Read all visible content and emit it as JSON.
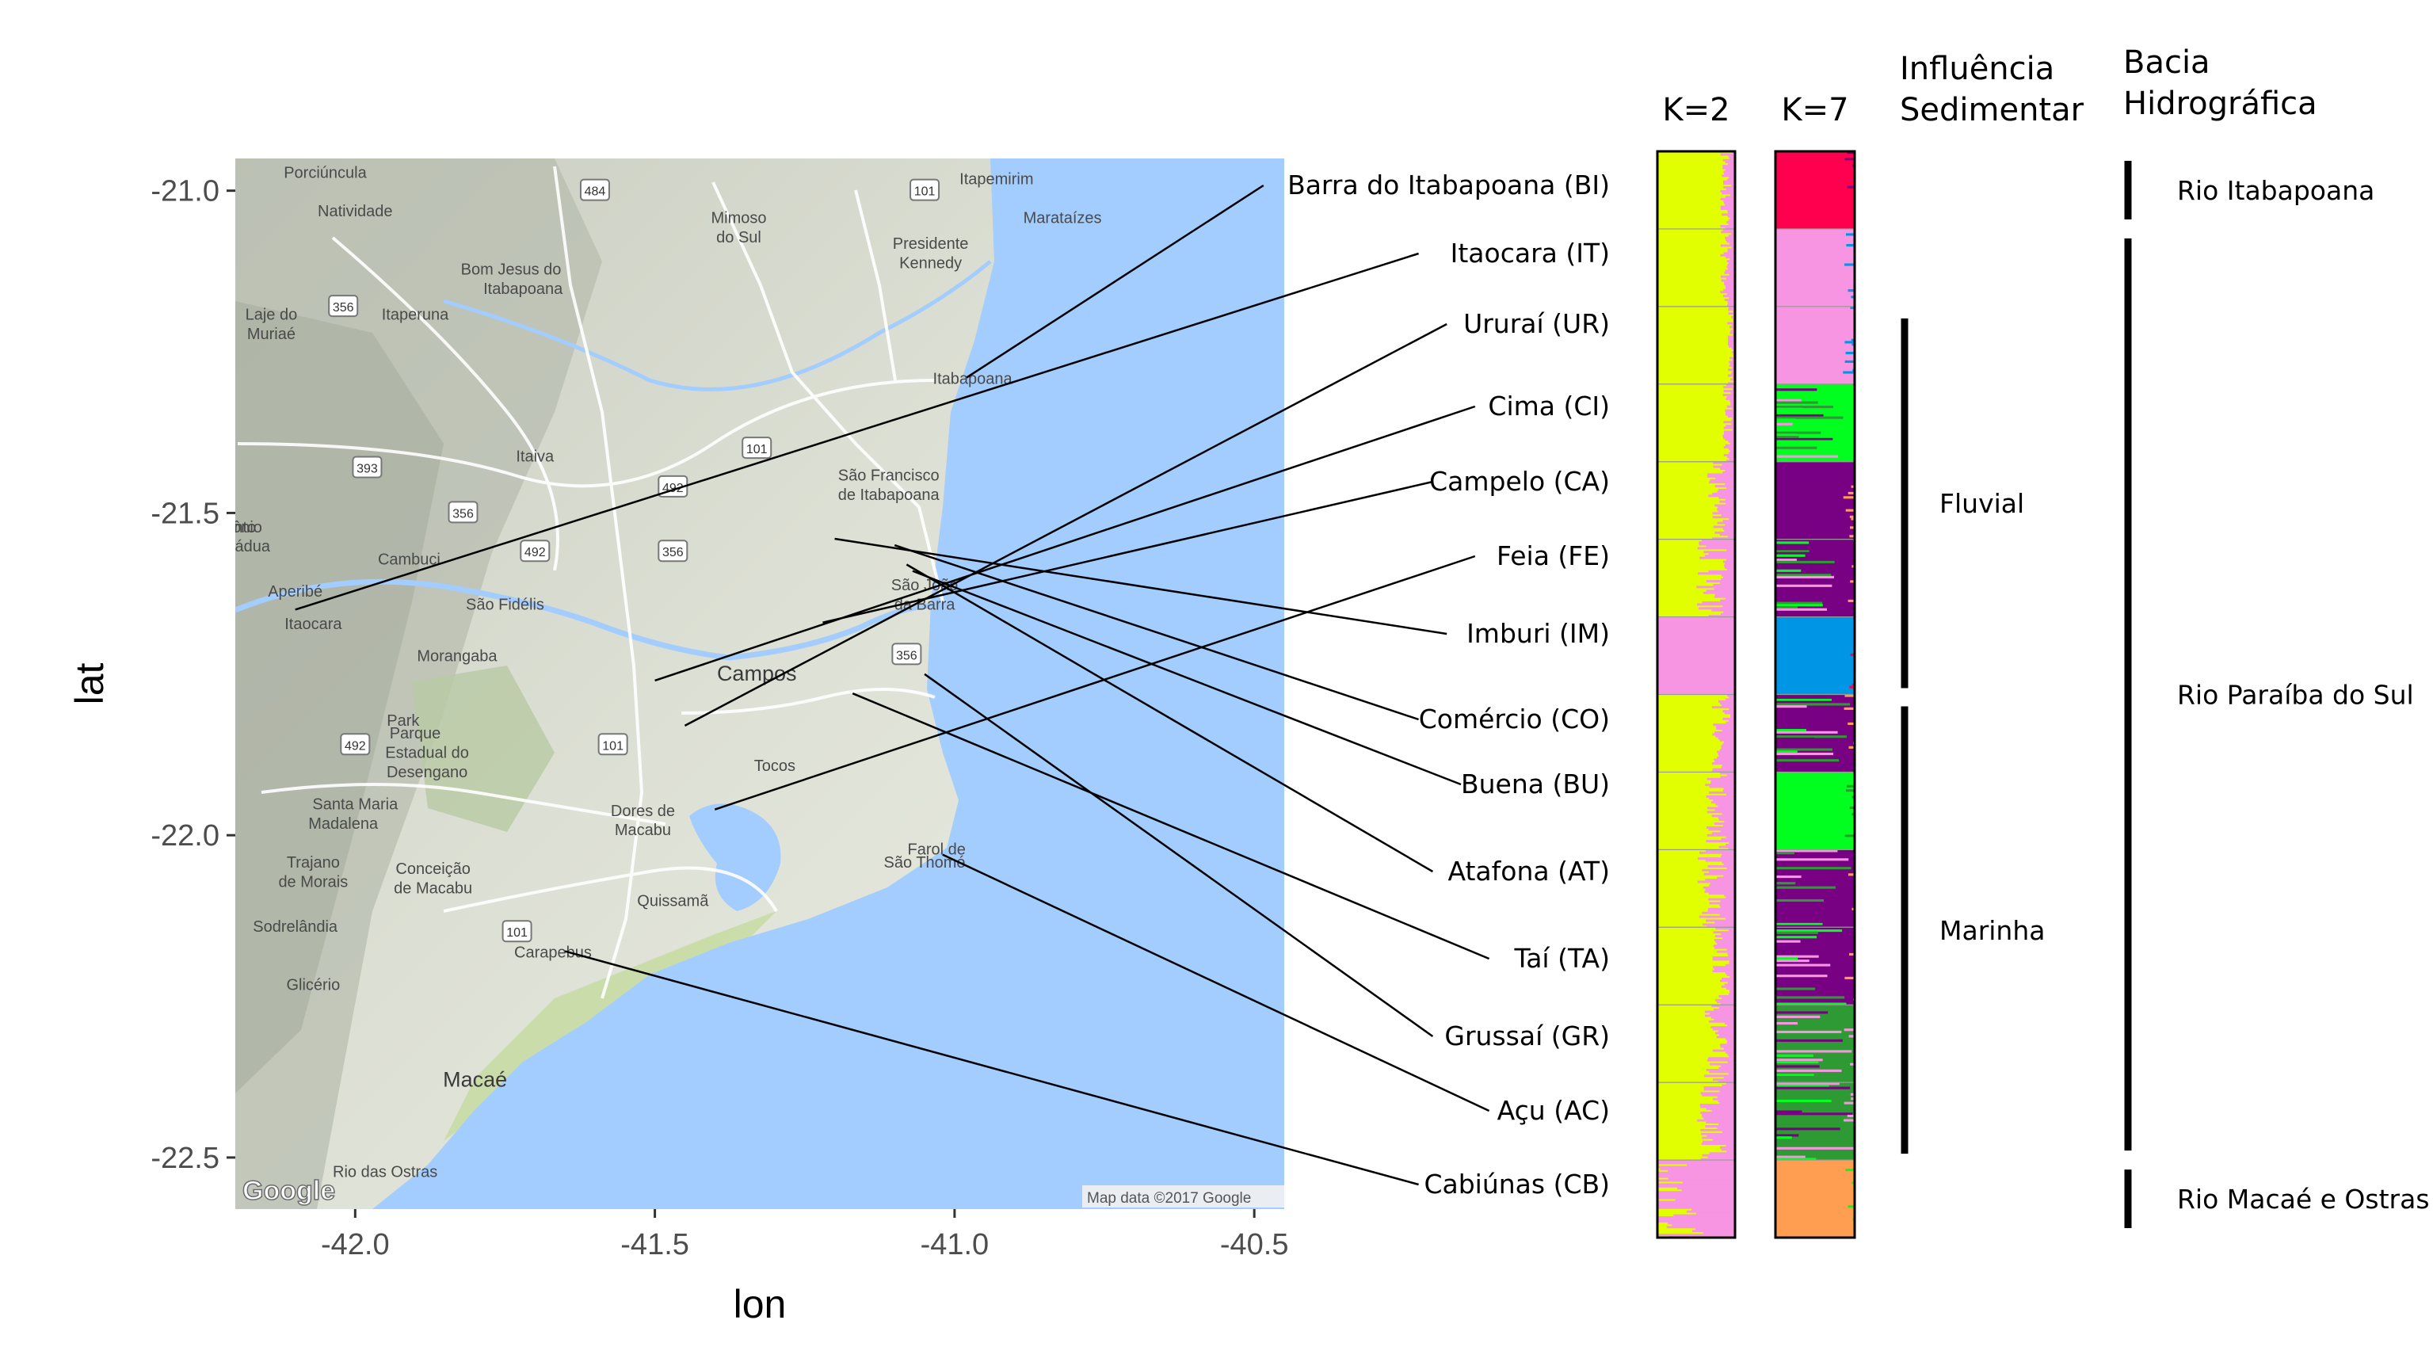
{
  "map": {
    "x_axis_title": "lon",
    "y_axis_title": "lat",
    "lon_range": [
      -42.2,
      -40.45
    ],
    "lat_range": [
      -22.58,
      -20.95
    ],
    "x_ticks": [
      {
        "value": -42.0,
        "label": "-42.0"
      },
      {
        "value": -41.5,
        "label": "-41.5"
      },
      {
        "value": -41.0,
        "label": "-41.0"
      },
      {
        "value": -40.5,
        "label": "-40.5"
      }
    ],
    "y_ticks": [
      {
        "value": -21.0,
        "label": "-21.0"
      },
      {
        "value": -21.5,
        "label": "-21.5"
      },
      {
        "value": -22.0,
        "label": "-22.0"
      },
      {
        "value": -22.5,
        "label": "-22.5"
      }
    ],
    "google_logo": "Google",
    "credit": "Map data ©2017 Google",
    "places": [
      {
        "name": "Porciúncula",
        "lon": -42.05,
        "lat": -20.98
      },
      {
        "name": "Natividade",
        "lon": -42.0,
        "lat": -21.04
      },
      {
        "name": "Bom Jesus do",
        "lon": -41.74,
        "lat": -21.13
      },
      {
        "name": "Itabapoana",
        "lon": -41.72,
        "lat": -21.16
      },
      {
        "name": "Laje do",
        "lon": -42.14,
        "lat": -21.2
      },
      {
        "name": "Muriaé",
        "lon": -42.14,
        "lat": -21.23
      },
      {
        "name": "Itaperuna",
        "lon": -41.9,
        "lat": -21.2
      },
      {
        "name": "Mimoso",
        "lon": -41.36,
        "lat": -21.05
      },
      {
        "name": "do Sul",
        "lon": -41.36,
        "lat": -21.08
      },
      {
        "name": "Itapemirim",
        "lon": -40.93,
        "lat": -20.99
      },
      {
        "name": "Marataízes",
        "lon": -40.82,
        "lat": -21.05
      },
      {
        "name": "Presidente",
        "lon": -41.04,
        "lat": -21.09
      },
      {
        "name": "Kennedy",
        "lon": -41.04,
        "lat": -21.12
      },
      {
        "name": "Itabapoana",
        "lon": -40.97,
        "lat": -21.3
      },
      {
        "name": "Itaocara",
        "lon": -42.07,
        "lat": -21.68
      },
      {
        "name": "Aperibé",
        "lon": -42.1,
        "lat": -21.63
      },
      {
        "name": "Itaiva",
        "lon": -41.7,
        "lat": -21.42
      },
      {
        "name": "Santo",
        "lon": -42.2,
        "lat": -21.53
      },
      {
        "name": "Antônio",
        "lon": -42.2,
        "lat": -21.53
      },
      {
        "name": "Pádua",
        "lon": -42.18,
        "lat": -21.56
      },
      {
        "name": "Cambuci",
        "lon": -41.91,
        "lat": -21.58
      },
      {
        "name": "São Fidélis",
        "lon": -41.75,
        "lat": -21.65
      },
      {
        "name": "São Francisco",
        "lon": -41.11,
        "lat": -21.45
      },
      {
        "name": "de Itabapoana",
        "lon": -41.11,
        "lat": -21.48
      },
      {
        "name": "São João",
        "lon": -41.05,
        "lat": -21.62
      },
      {
        "name": "da Barra",
        "lon": -41.05,
        "lat": -21.65
      },
      {
        "name": "Morangaba",
        "lon": -41.83,
        "lat": -21.73
      },
      {
        "name": "Campos",
        "lon": -41.33,
        "lat": -21.76
      },
      {
        "name": "Tocos",
        "lon": -41.3,
        "lat": -21.9
      },
      {
        "name": "Santa Maria",
        "lon": -42.0,
        "lat": -21.96
      },
      {
        "name": "Madalena",
        "lon": -42.02,
        "lat": -21.99
      },
      {
        "name": "Dores de",
        "lon": -41.52,
        "lat": -21.97
      },
      {
        "name": "Macabu",
        "lon": -41.52,
        "lat": -22.0
      },
      {
        "name": "Trajano",
        "lon": -42.07,
        "lat": -22.05
      },
      {
        "name": "de Morais",
        "lon": -42.07,
        "lat": -22.08
      },
      {
        "name": "Conceição",
        "lon": -41.87,
        "lat": -22.06
      },
      {
        "name": "de Macabu",
        "lon": -41.87,
        "lat": -22.09
      },
      {
        "name": "Sodrelândia",
        "lon": -42.1,
        "lat": -22.15
      },
      {
        "name": "Quissamã",
        "lon": -41.47,
        "lat": -22.11
      },
      {
        "name": "Farol de",
        "lon": -41.03,
        "lat": -22.03
      },
      {
        "name": "São Thomé",
        "lon": -41.05,
        "lat": -22.05
      },
      {
        "name": "Carapebus",
        "lon": -41.67,
        "lat": -22.19
      },
      {
        "name": "Glicério",
        "lon": -42.07,
        "lat": -22.24
      },
      {
        "name": "Macaé",
        "lon": -41.8,
        "lat": -22.39
      },
      {
        "name": "Rio das Ostras",
        "lon": -41.95,
        "lat": -22.53
      },
      {
        "name": "Parque",
        "lon": -41.9,
        "lat": -21.85
      },
      {
        "name": "Estadual do",
        "lon": -41.88,
        "lat": -21.88
      },
      {
        "name": "Desengano",
        "lon": -41.88,
        "lat": -21.91
      },
      {
        "name": "Park",
        "lon": -41.92,
        "lat": -21.83
      }
    ],
    "road_shields": [
      "484",
      "101",
      "356",
      "393",
      "492",
      "356",
      "492",
      "356",
      "101",
      "492",
      "101",
      "356",
      "101"
    ]
  },
  "sites": [
    {
      "label": "Barra do Itabapoana (BI)",
      "lon": -40.98,
      "lat": -21.29
    },
    {
      "label": "Itaocara (IT)",
      "lon": -42.1,
      "lat": -21.65
    },
    {
      "label": "Ururaí (UR)",
      "lon": -41.45,
      "lat": -21.83
    },
    {
      "label": "Cima (CI)",
      "lon": -41.5,
      "lat": -21.76
    },
    {
      "label": "Campelo (CA)",
      "lon": -41.22,
      "lat": -21.67
    },
    {
      "label": "Feia (FE)",
      "lon": -41.4,
      "lat": -21.96
    },
    {
      "label": "Imburi (IM)",
      "lon": -41.2,
      "lat": -21.54
    },
    {
      "label": "Comércio (CO)",
      "lon": -41.1,
      "lat": -21.55
    },
    {
      "label": "Buena (BU)",
      "lon": -41.07,
      "lat": -21.59
    },
    {
      "label": "Atafona (AT)",
      "lon": -41.08,
      "lat": -21.58
    },
    {
      "label": "Taí (TA)",
      "lon": -41.17,
      "lat": -21.78
    },
    {
      "label": "Grussaí (GR)",
      "lon": -41.05,
      "lat": -21.75
    },
    {
      "label": "Açu (AC)",
      "lon": -41.02,
      "lat": -22.03
    },
    {
      "label": "Cabiúnas (CB)",
      "lon": -41.65,
      "lat": -22.18
    }
  ],
  "k2": {
    "label": "K=2",
    "colors": {
      "a": "#e2ff00",
      "b": "#f795e3"
    },
    "pink_fraction_per_site": [
      0.1,
      0.1,
      0.05,
      0.08,
      0.18,
      0.25,
      1.0,
      0.15,
      0.2,
      0.25,
      0.15,
      0.2,
      0.25,
      0.85
    ]
  },
  "k7": {
    "label": "K=7",
    "colors": [
      "#ff004f",
      "#f795e3",
      "#00ff1e",
      "#780082",
      "#0096e6",
      "#2e9a33",
      "#ff9d50"
    ],
    "site_main_color": [
      0,
      1,
      1,
      2,
      3,
      3,
      4,
      3,
      2,
      3,
      3,
      5,
      5,
      6
    ]
  },
  "sediment": {
    "header": [
      "Influência",
      "Sedimentar"
    ],
    "groups": [
      {
        "label": "Fluvial",
        "from_site": 2,
        "to_site": 7
      },
      {
        "label": "Marinha",
        "from_site": 7,
        "to_site": 13
      }
    ]
  },
  "basin": {
    "header": [
      "Bacia",
      "Hidrográfica"
    ],
    "groups": [
      {
        "label": "Rio Itabapoana",
        "from_site": 0,
        "to_site": 1
      },
      {
        "label": "Rio Paraíba do Sul",
        "from_site": 1,
        "to_site": 13
      },
      {
        "label": "Rio Macaé e Ostras",
        "from_site": 13,
        "to_site": 14
      }
    ]
  }
}
